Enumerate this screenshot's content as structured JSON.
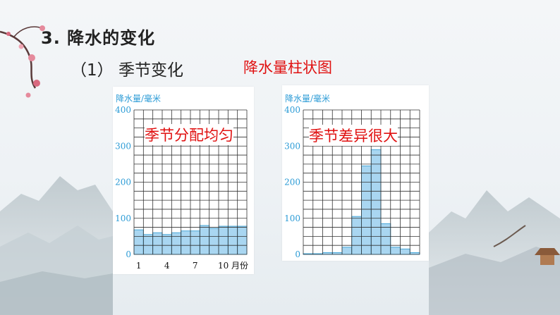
{
  "slide": {
    "title": "3. 降水的变化",
    "subtitle": "（1） 季节变化",
    "chart_heading": "降水量柱状图"
  },
  "colors": {
    "bar_fill": "#a9d6f1",
    "bar_stroke": "#4aa8d8",
    "grid": "#333333",
    "y_label": "#2b9bd6",
    "annotation": "#e01010"
  },
  "chart_data": [
    {
      "type": "bar",
      "ylabel": "降水量/毫米",
      "xlabel": "月份",
      "ylim": [
        0,
        400
      ],
      "yticks": [
        0,
        100,
        200,
        300,
        400
      ],
      "x": [
        1,
        2,
        3,
        4,
        5,
        6,
        7,
        8,
        9,
        10,
        11,
        12
      ],
      "xtick_labels": [
        "1",
        "4",
        "7",
        "10"
      ],
      "xtick_positions": [
        1,
        4,
        7,
        10
      ],
      "x_unit_label": "月份",
      "values": [
        68,
        55,
        60,
        55,
        60,
        65,
        65,
        80,
        72,
        78,
        78,
        78
      ],
      "annotation": "季节分配均匀",
      "grid": true
    },
    {
      "type": "bar",
      "ylabel": "降水量/毫米",
      "xlabel": "月份",
      "ylim": [
        0,
        400
      ],
      "yticks": [
        0,
        100,
        200,
        300,
        400
      ],
      "x": [
        1,
        2,
        3,
        4,
        5,
        6,
        7,
        8,
        9,
        10,
        11,
        12
      ],
      "xtick_labels": [
        "1",
        "4",
        "7",
        "10"
      ],
      "xtick_positions": [
        1,
        4,
        7,
        10
      ],
      "x_unit_label": "月份",
      "values": [
        2,
        2,
        5,
        5,
        20,
        105,
        245,
        290,
        85,
        20,
        15,
        5
      ],
      "annotation": "季节差异很大",
      "grid": true
    }
  ]
}
